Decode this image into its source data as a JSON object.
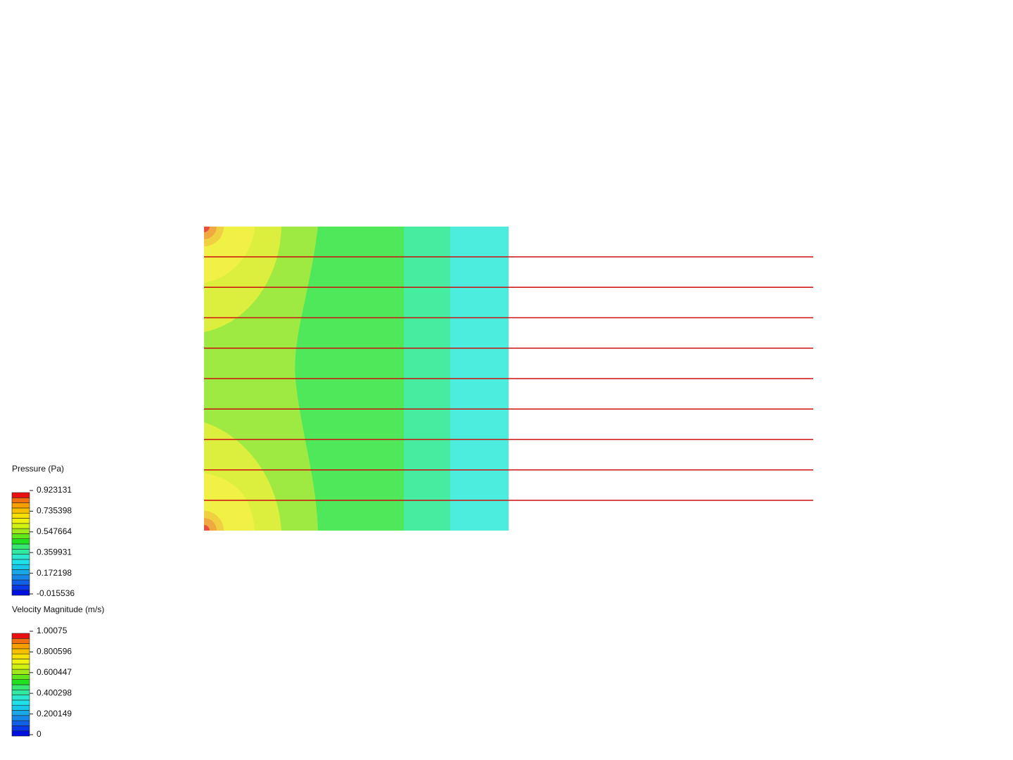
{
  "legends": [
    {
      "title": "Pressure (Pa)",
      "ticks": [
        "0.923131",
        "0.735398",
        "0.547664",
        "0.359931",
        "0.172198",
        "-0.015536"
      ]
    },
    {
      "title": "Velocity Magnitude (m/s)",
      "ticks": [
        "1.00075",
        "0.800596",
        "0.600447",
        "0.400298",
        "0.200149",
        "0"
      ]
    }
  ]
}
